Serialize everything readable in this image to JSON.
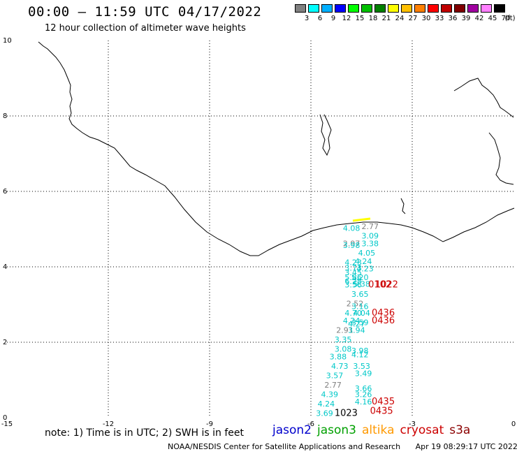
{
  "header": {
    "title": "00:00 – 11:59 UTC 04/17/2022",
    "subtitle": "12 hour collection of altimeter wave heights"
  },
  "colorbar": {
    "labels": [
      "3",
      "6",
      "9",
      "12",
      "15",
      "18",
      "21",
      "24",
      "27",
      "30",
      "33",
      "36",
      "39",
      "42",
      "45",
      "70"
    ],
    "unit": "(ft)",
    "colors": [
      "#808080",
      "#00ffff",
      "#00b0ff",
      "#0000ff",
      "#00ff00",
      "#00c000",
      "#008000",
      "#ffff00",
      "#ffc000",
      "#ff8000",
      "#ff0000",
      "#c00000",
      "#800000",
      "#a000a0",
      "#ff80ff",
      "#000000"
    ]
  },
  "axes": {
    "x_ticks": [
      "-15",
      "-12",
      "-9",
      "-6",
      "-3",
      "0"
    ],
    "y_ticks": [
      "0",
      "2",
      "4",
      "6",
      "8",
      "10"
    ]
  },
  "observations": [
    {
      "text": "2.77",
      "lon": -4.5,
      "lat": 5.0,
      "color": "#808080"
    },
    {
      "text": "4.08",
      "lon": -5.05,
      "lat": 4.95,
      "color": "#00c8c8"
    },
    {
      "text": "3.09",
      "lon": -4.5,
      "lat": 4.75,
      "color": "#00c8c8"
    },
    {
      "text": "2.97",
      "lon": -5.05,
      "lat": 4.55,
      "color": "#808080"
    },
    {
      "text": "3.38",
      "lon": -4.5,
      "lat": 4.55,
      "color": "#00c8c8"
    },
    {
      "text": "3.98",
      "lon": -5.05,
      "lat": 4.5,
      "color": "#00c8c8"
    },
    {
      "text": "4.05",
      "lon": -4.6,
      "lat": 4.3,
      "color": "#00c8c8"
    },
    {
      "text": "4.24",
      "lon": -4.7,
      "lat": 4.07,
      "color": "#00c8c8"
    },
    {
      "text": "4.23",
      "lon": -5.0,
      "lat": 4.05,
      "color": "#00c8c8"
    },
    {
      "text": "3.73",
      "lon": -5.0,
      "lat": 3.9,
      "color": "#00c8c8"
    },
    {
      "text": "4.23",
      "lon": -4.65,
      "lat": 3.88,
      "color": "#00c8c8"
    },
    {
      "text": "3.45",
      "lon": -5.0,
      "lat": 3.78,
      "color": "#00c8c8"
    },
    {
      "text": "5.86",
      "lon": -5.0,
      "lat": 3.65,
      "color": "#00c8c8"
    },
    {
      "text": "5.20",
      "lon": -4.8,
      "lat": 3.65,
      "color": "#00c8c8"
    },
    {
      "text": "6.28",
      "lon": -5.0,
      "lat": 3.55,
      "color": "#00c8c8"
    },
    {
      "text": "5.38",
      "lon": -4.75,
      "lat": 3.47,
      "color": "#00c8c8"
    },
    {
      "text": "3.56",
      "lon": -5.0,
      "lat": 3.45,
      "color": "#00c8c8"
    },
    {
      "text": "0102",
      "lon": -4.3,
      "lat": 3.45,
      "color": "#cc0000"
    },
    {
      "text": "1022",
      "lon": -4.1,
      "lat": 3.45,
      "color": "#cc0000"
    },
    {
      "text": "3.65",
      "lon": -4.8,
      "lat": 3.2,
      "color": "#00c8c8"
    },
    {
      "text": "2.52",
      "lon": -4.95,
      "lat": 2.95,
      "color": "#808080"
    },
    {
      "text": "3.16",
      "lon": -4.8,
      "lat": 2.88,
      "color": "#00c8c8"
    },
    {
      "text": "4.70",
      "lon": -5.0,
      "lat": 2.7,
      "color": "#00c8c8"
    },
    {
      "text": "4.04",
      "lon": -4.75,
      "lat": 2.7,
      "color": "#00c8c8"
    },
    {
      "text": "0436",
      "lon": -4.2,
      "lat": 2.7,
      "color": "#cc0000"
    },
    {
      "text": "4.24",
      "lon": -5.05,
      "lat": 2.5,
      "color": "#00c8c8"
    },
    {
      "text": "3.59",
      "lon": -4.8,
      "lat": 2.45,
      "color": "#00c8c8"
    },
    {
      "text": "4.27",
      "lon": -4.9,
      "lat": 2.42,
      "color": "#00c8c8"
    },
    {
      "text": "0436",
      "lon": -4.2,
      "lat": 2.5,
      "color": "#cc0000"
    },
    {
      "text": "2.91",
      "lon": -5.25,
      "lat": 2.25,
      "color": "#808080"
    },
    {
      "text": "3.94",
      "lon": -4.9,
      "lat": 2.25,
      "color": "#00c8c8"
    },
    {
      "text": "3.35",
      "lon": -5.3,
      "lat": 2.0,
      "color": "#00c8c8"
    },
    {
      "text": "3.08",
      "lon": -5.3,
      "lat": 1.75,
      "color": "#00c8c8"
    },
    {
      "text": "3.98",
      "lon": -4.8,
      "lat": 1.7,
      "color": "#00c8c8"
    },
    {
      "text": "3.88",
      "lon": -5.45,
      "lat": 1.55,
      "color": "#00c8c8"
    },
    {
      "text": "4.12",
      "lon": -4.8,
      "lat": 1.6,
      "color": "#00c8c8"
    },
    {
      "text": "4.73",
      "lon": -5.4,
      "lat": 1.3,
      "color": "#00c8c8"
    },
    {
      "text": "3.53",
      "lon": -4.75,
      "lat": 1.3,
      "color": "#00c8c8"
    },
    {
      "text": "3.57",
      "lon": -5.55,
      "lat": 1.05,
      "color": "#00c8c8"
    },
    {
      "text": "3.49",
      "lon": -4.7,
      "lat": 1.1,
      "color": "#00c8c8"
    },
    {
      "text": "2.77",
      "lon": -5.6,
      "lat": 0.8,
      "color": "#808080"
    },
    {
      "text": "3.66",
      "lon": -4.7,
      "lat": 0.7,
      "color": "#00c8c8"
    },
    {
      "text": "4.39",
      "lon": -5.7,
      "lat": 0.55,
      "color": "#00c8c8"
    },
    {
      "text": "3.26",
      "lon": -4.7,
      "lat": 0.55,
      "color": "#00c8c8"
    },
    {
      "text": "4.24",
      "lon": -5.8,
      "lat": 0.3,
      "color": "#00c8c8"
    },
    {
      "text": "4.16",
      "lon": -4.7,
      "lat": 0.35,
      "color": "#00c8c8"
    },
    {
      "text": "0435",
      "lon": -4.2,
      "lat": 0.35,
      "color": "#cc0000"
    },
    {
      "text": "3.69",
      "lon": -5.85,
      "lat": 0.05,
      "color": "#00c8c8"
    },
    {
      "text": "1023",
      "lon": -5.3,
      "lat": 0.05,
      "color": "#000000"
    },
    {
      "text": "0435",
      "lon": -4.25,
      "lat": 0.1,
      "color": "#cc0000"
    }
  ],
  "footer": {
    "note": "note:  1) Time is in UTC; 2) SWH is in feet",
    "satellites": [
      {
        "name": "jason2",
        "color": "#0000cc"
      },
      {
        "name": "jason3",
        "color": "#00a000"
      },
      {
        "name": "altika",
        "color": "#ff9900"
      },
      {
        "name": "cryosat",
        "color": "#cc0000"
      },
      {
        "name": "s3a",
        "color": "#8b0000"
      }
    ],
    "credit": "NOAA/NESDIS Center for Satellite Applications and Research",
    "timestamp": "Apr 19 08:29:17 UTC 2022"
  }
}
